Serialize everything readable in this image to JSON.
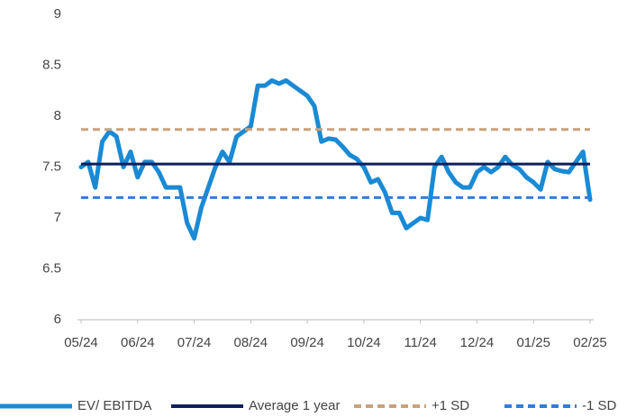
{
  "chart_data": {
    "type": "line",
    "categories": [
      "05/24",
      null,
      null,
      null,
      null,
      null,
      null,
      null,
      "06/24",
      null,
      null,
      null,
      null,
      null,
      null,
      null,
      "07/24",
      null,
      null,
      null,
      null,
      null,
      null,
      null,
      "08/24",
      null,
      null,
      null,
      null,
      null,
      null,
      null,
      "09/24",
      null,
      null,
      null,
      null,
      null,
      null,
      null,
      "10/24",
      null,
      null,
      null,
      null,
      null,
      null,
      null,
      "11/24",
      null,
      null,
      null,
      null,
      null,
      null,
      null,
      "12/24",
      null,
      null,
      null,
      null,
      null,
      null,
      null,
      "01/25",
      null,
      null,
      null,
      null,
      null,
      null,
      null,
      "02/25"
    ],
    "series": [
      {
        "name": "EV/ EBITDA",
        "color": "#1a8ad4",
        "values": [
          7.5,
          7.55,
          7.3,
          7.75,
          7.85,
          7.8,
          7.5,
          7.65,
          7.4,
          7.55,
          7.55,
          7.45,
          7.3,
          7.3,
          7.3,
          6.95,
          6.8,
          7.1,
          7.3,
          7.5,
          7.65,
          7.55,
          7.8,
          7.85,
          7.9,
          8.3,
          8.3,
          8.35,
          8.32,
          8.35,
          8.3,
          8.25,
          8.2,
          8.1,
          7.75,
          7.78,
          7.77,
          7.7,
          7.62,
          7.58,
          7.5,
          7.35,
          7.38,
          7.25,
          7.05,
          7.05,
          6.9,
          6.95,
          7.0,
          6.98,
          7.5,
          7.6,
          7.45,
          7.35,
          7.3,
          7.3,
          7.45,
          7.5,
          7.45,
          7.5,
          7.6,
          7.52,
          7.48,
          7.4,
          7.35,
          7.28,
          7.55,
          7.48,
          7.46,
          7.45,
          7.55,
          7.65,
          7.18
        ]
      }
    ],
    "reference_lines": [
      {
        "name": "Average 1 year",
        "color": "#0d1f5c",
        "value": 7.53,
        "dashed": false
      },
      {
        "name": "+1 SD",
        "color": "#c9a27c",
        "value": 7.87,
        "dashed": true
      },
      {
        "name": "-1 SD",
        "color": "#2f7ddf",
        "value": 7.2,
        "dashed": true
      }
    ],
    "ylim": [
      6,
      9
    ],
    "yticks": [
      6,
      6.5,
      7,
      7.5,
      8,
      8.5,
      9
    ],
    "grid": false
  }
}
